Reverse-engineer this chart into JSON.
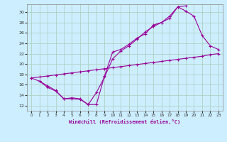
{
  "xlabel": "Windchill (Refroidissement éolien,°C)",
  "bg_color": "#cceeff",
  "grid_color": "#aaccbb",
  "line_color": "#990099",
  "xlim": [
    -0.5,
    23.5
  ],
  "ylim": [
    11,
    31.5
  ],
  "yticks": [
    12,
    14,
    16,
    18,
    20,
    22,
    24,
    26,
    28,
    30
  ],
  "xticks": [
    0,
    1,
    2,
    3,
    4,
    5,
    6,
    7,
    8,
    9,
    10,
    11,
    12,
    13,
    14,
    15,
    16,
    17,
    18,
    19,
    20,
    21,
    22,
    23
  ],
  "line1_x": [
    0,
    1,
    2,
    3,
    4,
    5,
    6,
    7,
    8,
    9,
    10,
    11,
    12,
    13,
    14,
    15,
    16,
    17,
    18,
    19,
    20,
    21,
    22,
    23
  ],
  "line1_y": [
    17.3,
    17.5,
    17.7,
    17.9,
    18.1,
    18.3,
    18.5,
    18.7,
    18.9,
    19.1,
    19.3,
    19.5,
    19.7,
    19.9,
    20.1,
    20.3,
    20.5,
    20.7,
    20.9,
    21.1,
    21.3,
    21.5,
    21.8,
    22.0
  ],
  "line2_x": [
    0,
    1,
    2,
    3,
    4,
    5,
    6,
    7,
    8,
    9,
    10,
    11,
    12,
    13,
    14,
    15,
    16,
    17,
    18,
    19
  ],
  "line2_y": [
    17.3,
    16.7,
    15.8,
    14.9,
    13.3,
    13.3,
    13.2,
    12.2,
    12.2,
    17.7,
    22.3,
    22.8,
    23.8,
    25.0,
    25.8,
    27.5,
    28.0,
    28.8,
    31.0,
    31.2
  ],
  "line3_x": [
    1,
    2,
    3,
    4,
    5,
    6,
    7,
    8,
    9,
    10,
    11,
    12,
    13,
    14,
    15,
    16,
    17,
    18,
    19,
    20,
    21,
    22,
    23
  ],
  "line3_y": [
    16.7,
    15.5,
    14.8,
    13.3,
    13.5,
    13.3,
    12.2,
    14.5,
    17.5,
    21.0,
    22.5,
    23.5,
    24.8,
    26.2,
    27.2,
    28.0,
    29.2,
    31.0,
    30.2,
    29.2,
    25.5,
    23.5,
    22.8
  ]
}
